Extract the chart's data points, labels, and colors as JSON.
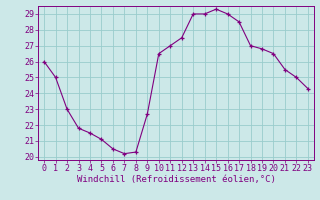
{
  "x": [
    0,
    1,
    2,
    3,
    4,
    5,
    6,
    7,
    8,
    9,
    10,
    11,
    12,
    13,
    14,
    15,
    16,
    17,
    18,
    19,
    20,
    21,
    22,
    23
  ],
  "y": [
    26.0,
    25.0,
    23.0,
    21.8,
    21.5,
    21.1,
    20.5,
    20.2,
    20.3,
    22.7,
    26.5,
    27.0,
    27.5,
    29.0,
    29.0,
    29.3,
    29.0,
    28.5,
    27.0,
    26.8,
    26.5,
    25.5,
    25.0,
    24.3
  ],
  "line_color": "#800080",
  "marker": "+",
  "bg_color": "#cce8e8",
  "grid_color": "#99cccc",
  "xlabel": "Windchill (Refroidissement éolien,°C)",
  "ylim_min": 19.8,
  "ylim_max": 29.5,
  "xlim_min": -0.5,
  "xlim_max": 23.5,
  "yticks": [
    20,
    21,
    22,
    23,
    24,
    25,
    26,
    27,
    28,
    29
  ],
  "xticks": [
    0,
    1,
    2,
    3,
    4,
    5,
    6,
    7,
    8,
    9,
    10,
    11,
    12,
    13,
    14,
    15,
    16,
    17,
    18,
    19,
    20,
    21,
    22,
    23
  ],
  "tick_label_color": "#800080",
  "xlabel_color": "#800080",
  "xlabel_fontsize": 6.5,
  "tick_fontsize": 6.0,
  "spine_color": "#800080",
  "linewidth": 0.8,
  "markersize": 3.5
}
